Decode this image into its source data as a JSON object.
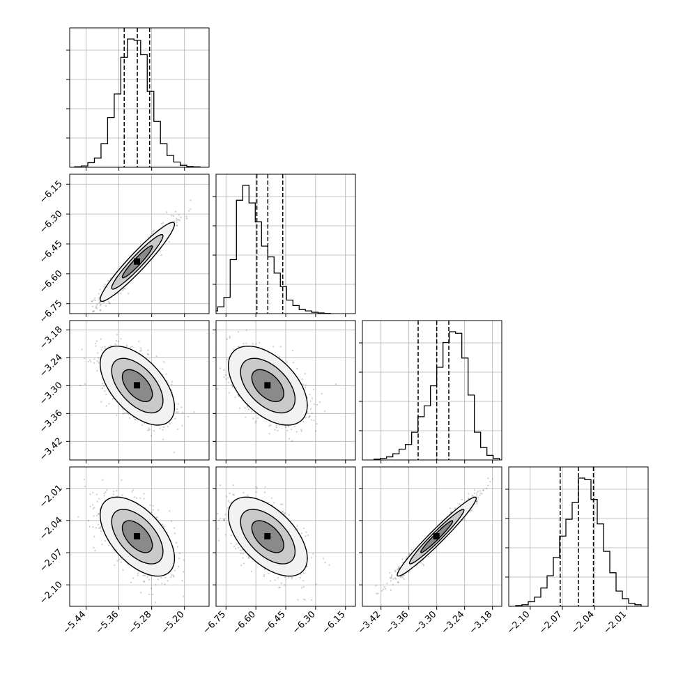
{
  "chart_data": {
    "type": "corner",
    "params": [
      {
        "xticks": [
          "−5.44",
          "−5.36",
          "−5.28",
          "−5.20"
        ],
        "xtick_vals": [
          -5.44,
          -5.36,
          -5.28,
          -5.2
        ],
        "range": [
          -5.48,
          -5.14
        ],
        "mean": -5.315,
        "sd": 0.032,
        "quantiles": [
          -5.347,
          -5.315,
          -5.285
        ],
        "hist": [
          0.004,
          0.01,
          0.035,
          0.07,
          0.18,
          0.38,
          0.56,
          0.84,
          0.98,
          0.97,
          0.86,
          0.58,
          0.35,
          0.18,
          0.09,
          0.04,
          0.015,
          0.006,
          0.003
        ]
      },
      {
        "xticks": [
          "−6.75",
          "−6.60",
          "−6.45",
          "−6.30",
          "−6.15"
        ],
        "xtick_vals": [
          -6.75,
          -6.6,
          -6.45,
          -6.3,
          -6.15
        ],
        "range": [
          -6.8,
          -6.1
        ],
        "mean": -6.54,
        "sd": 0.07,
        "quantiles": [
          -6.595,
          -6.54,
          -6.465
        ],
        "hist": [
          0.01,
          0.02,
          0.05,
          0.12,
          0.4,
          0.84,
          0.95,
          0.82,
          0.68,
          0.5,
          0.42,
          0.3,
          0.2,
          0.1,
          0.06,
          0.03,
          0.02,
          0.01,
          0.005,
          0.002
        ]
      },
      {
        "xticks": [
          "−3.42",
          "−3.36",
          "−3.30",
          "−3.24",
          "−3.18"
        ],
        "xtick_vals": [
          -3.42,
          -3.36,
          -3.3,
          -3.24,
          -3.18
        ],
        "range": [
          -3.46,
          -3.16
        ],
        "mean": -3.3,
        "sd": 0.03,
        "quantiles": [
          -3.34,
          -3.3,
          -3.274
        ],
        "hist": [
          0.005,
          0.01,
          0.02,
          0.04,
          0.07,
          0.1,
          0.18,
          0.28,
          0.35,
          0.48,
          0.6,
          0.76,
          0.83,
          0.82,
          0.66,
          0.42,
          0.18,
          0.08,
          0.03,
          0.01
        ]
      },
      {
        "xticks": [
          "−2.10",
          "−2.07",
          "−2.04",
          "−2.01"
        ],
        "xtick_vals": [
          -2.1,
          -2.07,
          -2.04,
          -2.01
        ],
        "range": [
          -2.12,
          -1.99
        ],
        "mean": -2.055,
        "sd": 0.013,
        "quantiles": [
          -2.072,
          -2.055,
          -2.041
        ],
        "hist": [
          0.005,
          0.01,
          0.03,
          0.06,
          0.12,
          0.2,
          0.32,
          0.46,
          0.57,
          0.68,
          0.84,
          0.83,
          0.7,
          0.54,
          0.36,
          0.22,
          0.1,
          0.05,
          0.02,
          0.01
        ]
      }
    ],
    "yticks": [
      null,
      [
        "−6.15",
        "−6.30",
        "−6.45",
        "−6.60",
        "−6.75"
      ],
      [
        "−3.18",
        "−3.24",
        "−3.30",
        "−3.36",
        "−3.42"
      ],
      [
        "−2.01",
        "−2.04",
        "−2.07",
        "−2.10"
      ]
    ],
    "correlations": {
      "1,0": 0.95,
      "2,0": -0.55,
      "2,1": -0.5,
      "3,0": -0.55,
      "3,1": -0.55,
      "3,2": 0.97
    },
    "grid": true,
    "legend": "none"
  }
}
